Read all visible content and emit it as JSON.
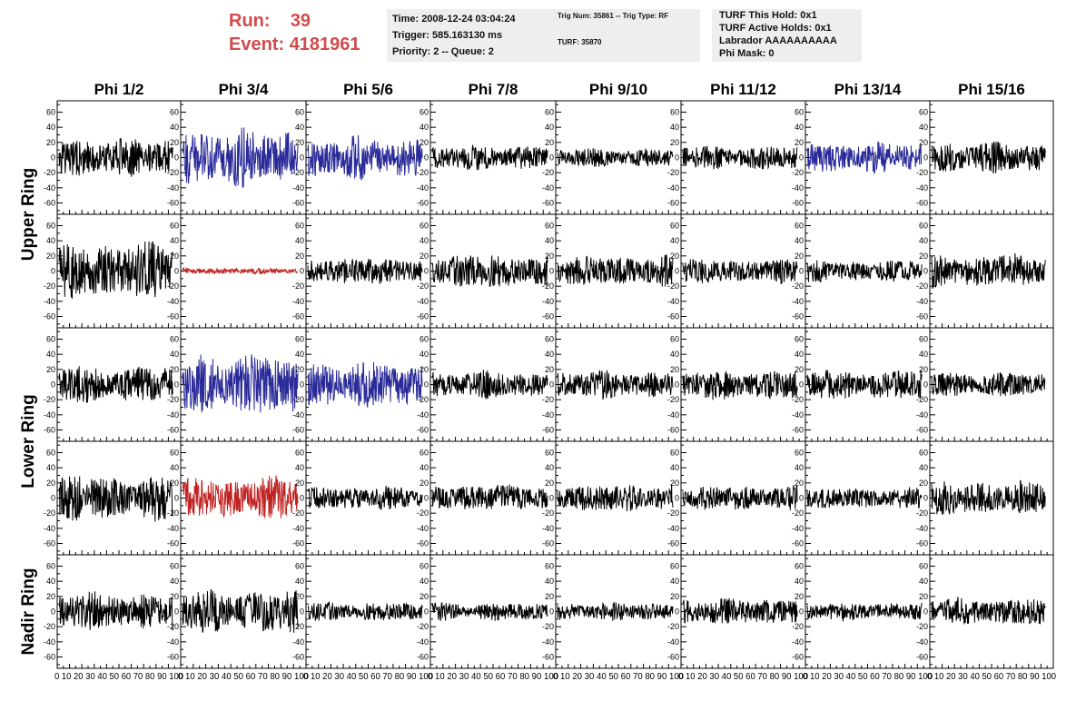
{
  "run_info": {
    "run_label": "Run:",
    "run_value": "39",
    "event_label": "Event:",
    "event_value": "4181961"
  },
  "time_box": {
    "time": "Time: 2008-12-24 03:04:24",
    "trigger": "Trigger: 585.163130 ms",
    "priority": "Priority: 2 -- Queue: 2"
  },
  "trig_box": {
    "trig_line": "Trig Num: 35861 -- Trig Type: RF",
    "turf_line": "TURF: 35870"
  },
  "turf_box": {
    "this_hold": "TURF This Hold: 0x1",
    "active_holds": "TURF Active Holds: 0x1",
    "labrador": "Labrador AAAAAAAAAA",
    "phi_mask": "Phi Mask: 0"
  },
  "columns": [
    "Phi 1/2",
    "Phi 3/4",
    "Phi 5/6",
    "Phi 7/8",
    "Phi 9/10",
    "Phi 11/12",
    "Phi 13/14",
    "Phi 15/16"
  ],
  "ring_labels": [
    {
      "text": "Upper Ring",
      "spans_rows": [
        0,
        1
      ]
    },
    {
      "text": "Lower Ring",
      "spans_rows": [
        2,
        3
      ]
    },
    {
      "text": "Nadir Ring",
      "spans_rows": [
        4
      ]
    }
  ],
  "y_ticks": [
    60,
    40,
    20,
    0,
    -20,
    -40,
    -60
  ],
  "x_ticks_label": "0 10 20 30 40 50 60 70 80 90 100",
  "colors": {
    "run_text": "#d34b4b",
    "trace_default": "#000000",
    "trace_blue": "#2a2a99",
    "trace_red": "#c02222",
    "info_box_bg": "#eeeeee"
  },
  "chart_data": {
    "type": "line",
    "title": "",
    "x_range": [
      0,
      100
    ],
    "y_range": [
      -75,
      75
    ],
    "rows": 5,
    "cols": 8,
    "panel_colors": [
      [
        "black",
        "blue",
        "blue",
        "black",
        "black",
        "black",
        "blue",
        "black"
      ],
      [
        "black",
        "red",
        "black",
        "black",
        "black",
        "black",
        "black",
        "black"
      ],
      [
        "black",
        "blue",
        "blue",
        "black",
        "black",
        "black",
        "black",
        "black"
      ],
      [
        "black",
        "red",
        "black",
        "black",
        "black",
        "black",
        "black",
        "black"
      ],
      [
        "black",
        "black",
        "black",
        "black",
        "black",
        "black",
        "black",
        "black"
      ]
    ],
    "panel_amplitudes": [
      [
        25,
        38,
        28,
        16,
        12,
        16,
        20,
        20
      ],
      [
        38,
        4,
        18,
        22,
        20,
        16,
        14,
        22
      ],
      [
        24,
        40,
        30,
        18,
        18,
        20,
        20,
        16
      ],
      [
        30,
        28,
        16,
        18,
        18,
        16,
        14,
        22
      ],
      [
        25,
        28,
        12,
        12,
        12,
        18,
        12,
        18
      ]
    ]
  }
}
